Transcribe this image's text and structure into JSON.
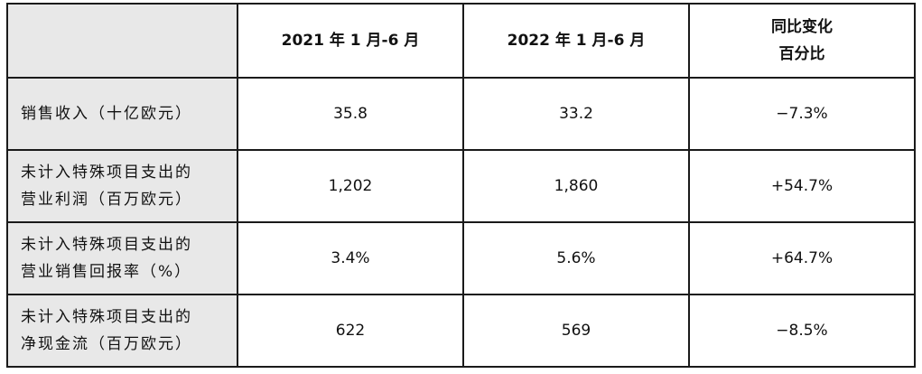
{
  "table": {
    "header": {
      "corner": "",
      "col1": "2021 年 1 月-6 月",
      "col2": "2022 年 1 月-6 月",
      "col3_line1": "同比变化",
      "col3_line2": "百分比"
    },
    "rows": [
      {
        "label_line1": "销售收入（十亿欧元）",
        "label_line2": "",
        "v2021": "35.8",
        "v2022": "33.2",
        "change": "−7.3%"
      },
      {
        "label_line1": "未计入特殊项目支出的",
        "label_line2": "营业利润（百万欧元）",
        "v2021": "1,202",
        "v2022": "1,860",
        "change": "+54.7%"
      },
      {
        "label_line1": "未计入特殊项目支出的",
        "label_line2": "营业销售回报率（%）",
        "v2021": "3.4%",
        "v2022": "5.6%",
        "change": "+64.7%"
      },
      {
        "label_line1": "未计入特殊项目支出的",
        "label_line2": "净现金流（百万欧元）",
        "v2021": "622",
        "v2022": "569",
        "change": "−8.5%"
      }
    ]
  }
}
